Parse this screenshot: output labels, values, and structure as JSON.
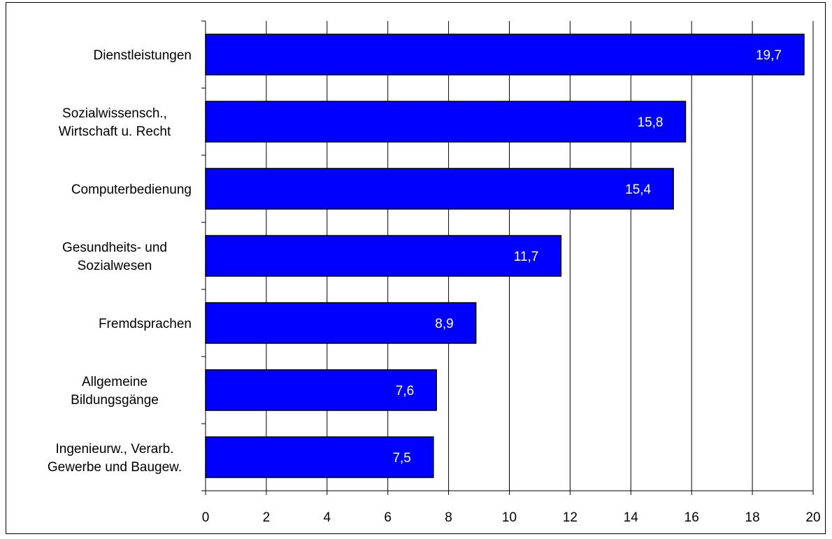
{
  "chart_data": {
    "type": "bar",
    "orientation": "horizontal",
    "categories": [
      [
        "Dienstleistungen"
      ],
      [
        "Sozialwissensch.,",
        "Wirtschaft u. Recht"
      ],
      [
        "Computerbedienung"
      ],
      [
        "Gesundheits- und",
        "Sozialwesen"
      ],
      [
        "Fremdsprachen"
      ],
      [
        "Allgemeine",
        "Bildungsgänge"
      ],
      [
        "Ingenieurw., Verarb.",
        "Gewerbe und Baugew."
      ]
    ],
    "values": [
      19.7,
      15.8,
      15.4,
      11.7,
      8.9,
      7.6,
      7.5
    ],
    "value_labels": [
      "19,7",
      "15,8",
      "15,4",
      "11,7",
      "8,9",
      "7,6",
      "7,5"
    ],
    "x_ticks": [
      "0",
      "2",
      "4",
      "6",
      "8",
      "10",
      "12",
      "14",
      "16",
      "18",
      "20"
    ],
    "xlim": [
      0,
      20
    ],
    "grid": "vertical",
    "bar_color": "#0000ff",
    "label_color": "#ffffff",
    "title": "",
    "xlabel": "",
    "ylabel": ""
  }
}
